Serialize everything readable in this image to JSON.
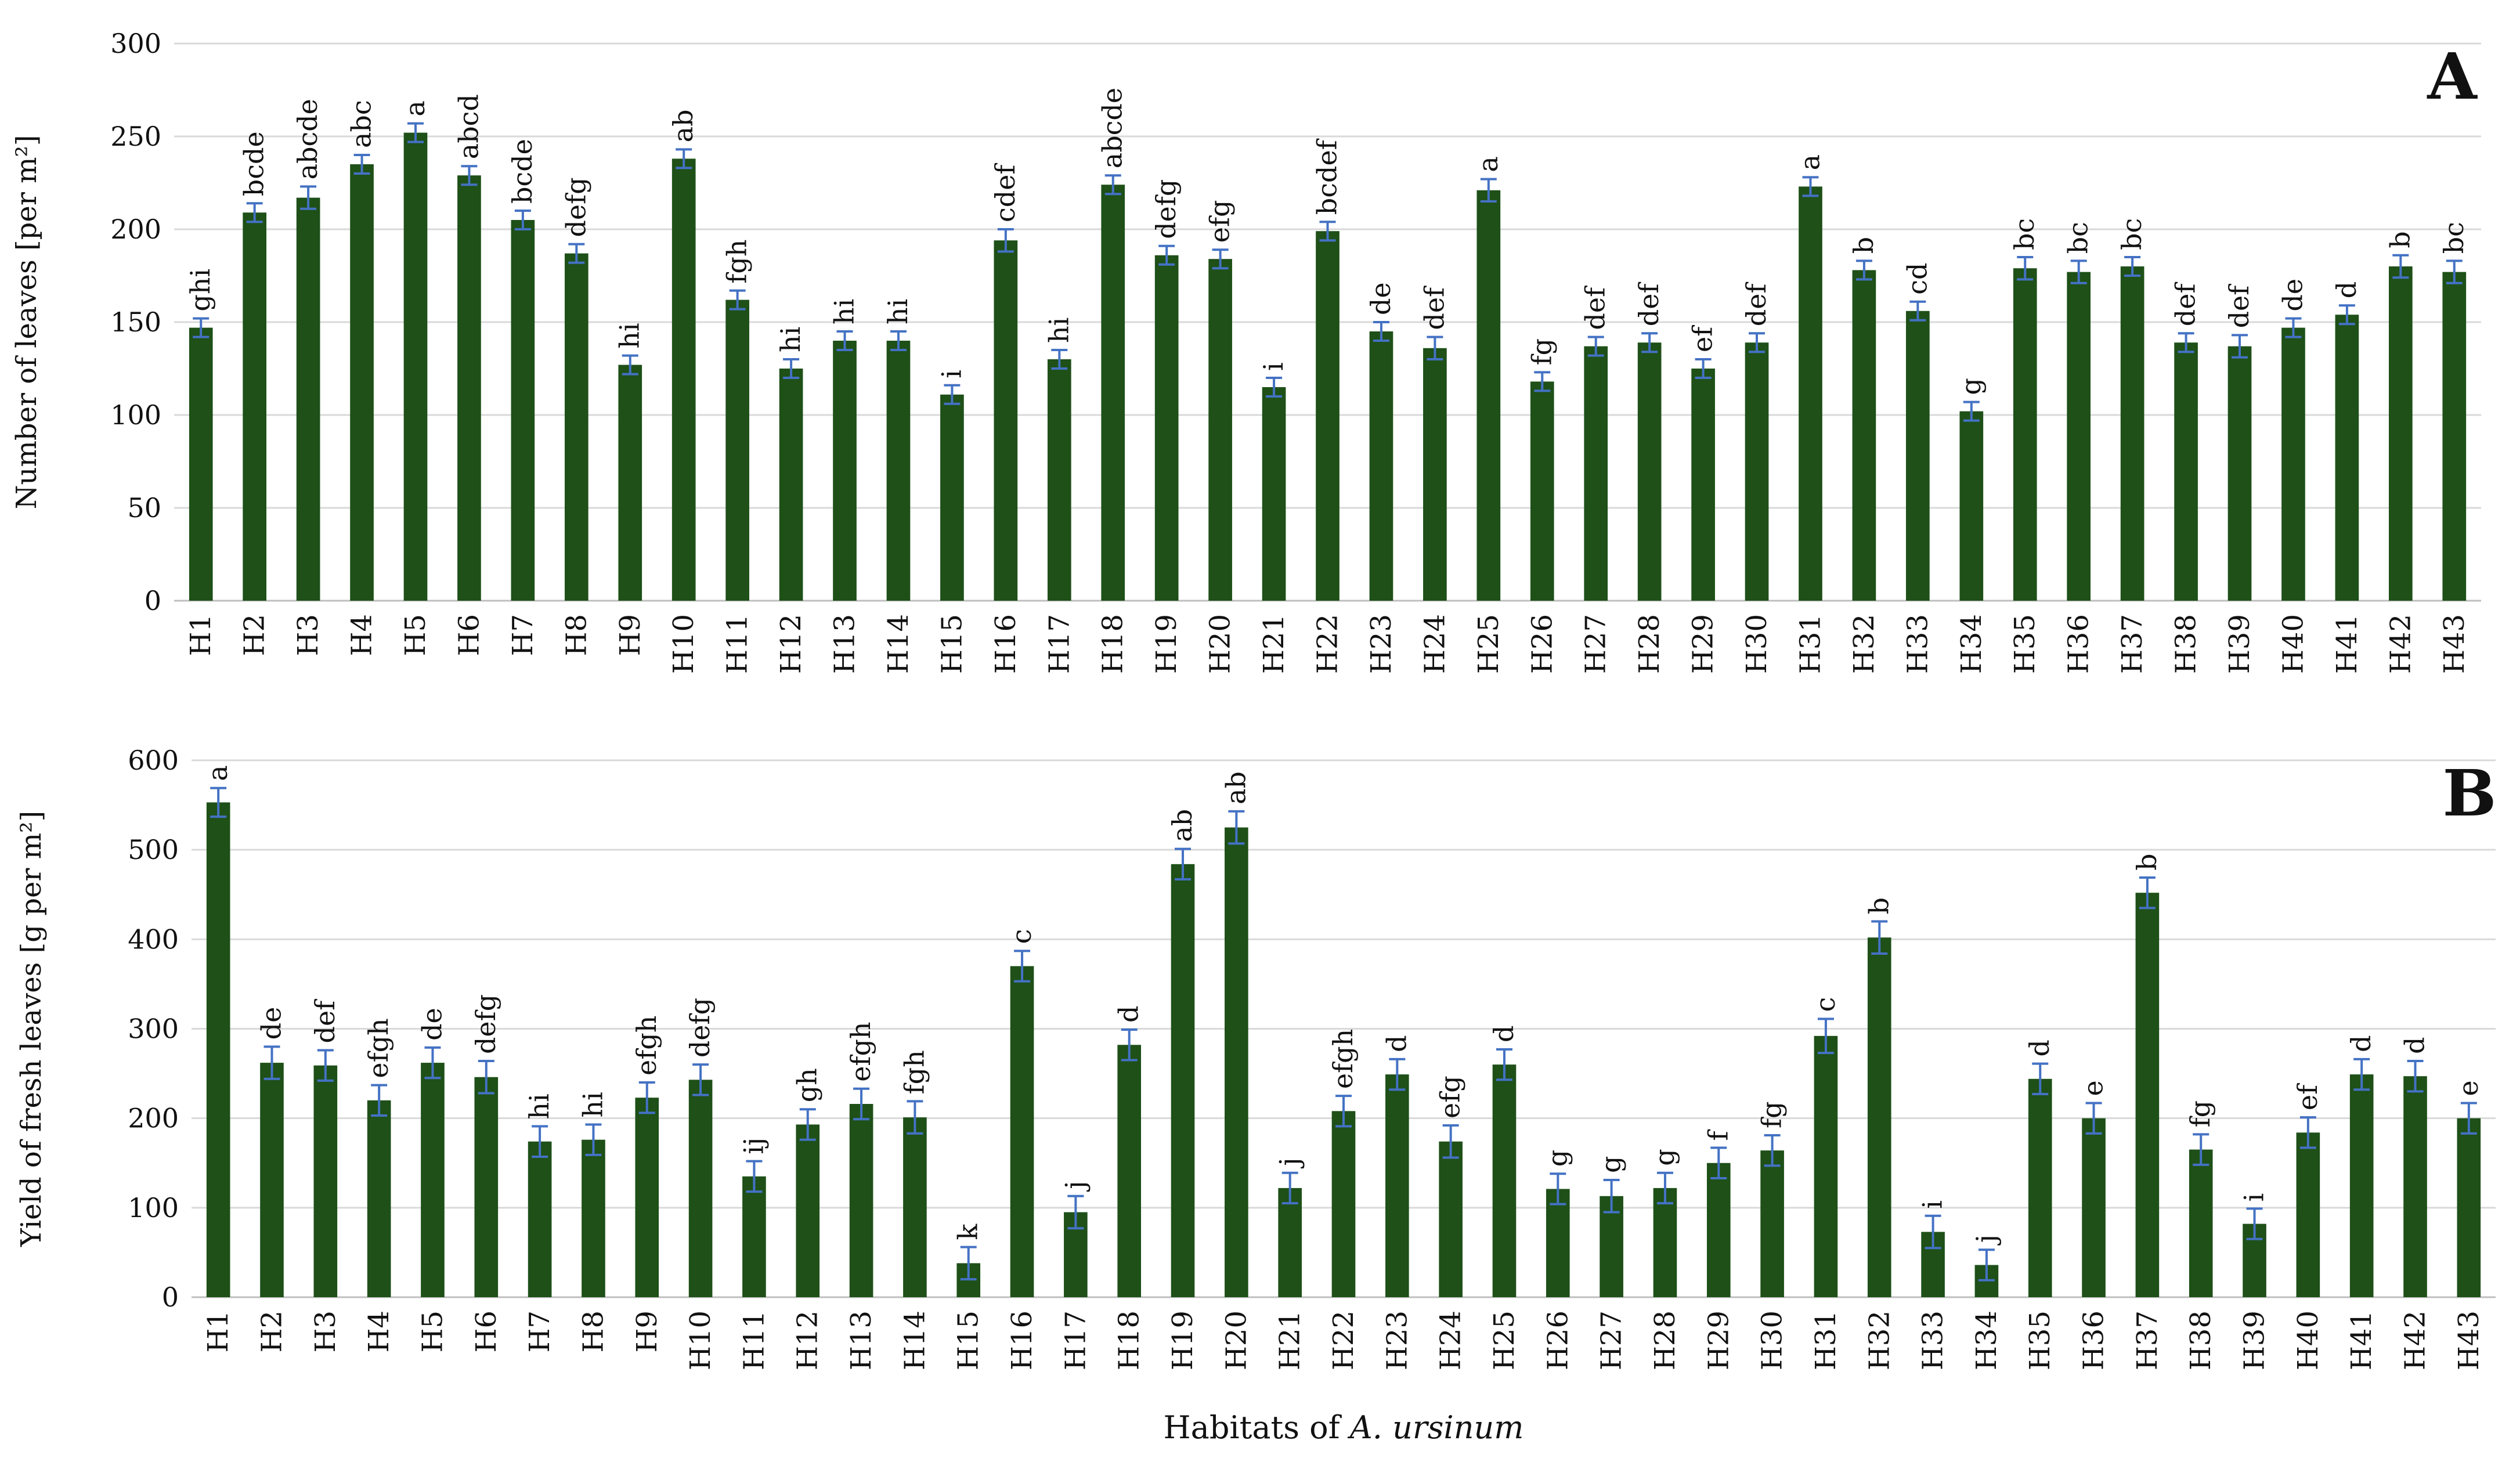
{
  "chart_data": [
    {
      "type": "bar",
      "panel_label": "A",
      "ylabel": "Number of leaves [per m²]",
      "ylim": [
        0,
        300
      ],
      "yticks": [
        0,
        50,
        100,
        150,
        200,
        250,
        300
      ],
      "grid": true,
      "categories": [
        "H1",
        "H2",
        "H3",
        "H4",
        "H5",
        "H6",
        "H7",
        "H8",
        "H9",
        "H10",
        "H11",
        "H12",
        "H13",
        "H14",
        "H15",
        "H16",
        "H17",
        "H18",
        "H19",
        "H20",
        "H21",
        "H22",
        "H23",
        "H24",
        "H25",
        "H26",
        "H27",
        "H28",
        "H29",
        "H30",
        "H31",
        "H32",
        "H33",
        "H34",
        "H35",
        "H36",
        "H37",
        "H38",
        "H39",
        "H40",
        "H41",
        "H42",
        "H43"
      ],
      "values": [
        147,
        209,
        217,
        235,
        252,
        229,
        205,
        187,
        127,
        238,
        162,
        125,
        140,
        140,
        111,
        194,
        130,
        224,
        186,
        184,
        115,
        199,
        145,
        136,
        221,
        118,
        137,
        139,
        125,
        139,
        223,
        178,
        156,
        102,
        179,
        177,
        180,
        139,
        137,
        147,
        154,
        180,
        177
      ],
      "errors": [
        5,
        5,
        6,
        5,
        5,
        5,
        5,
        5,
        5,
        5,
        5,
        5,
        5,
        5,
        5,
        6,
        5,
        5,
        5,
        5,
        5,
        5,
        5,
        6,
        6,
        5,
        5,
        5,
        5,
        5,
        5,
        5,
        5,
        5,
        6,
        6,
        5,
        5,
        6,
        5,
        5,
        6,
        6
      ],
      "letters": [
        "ghi",
        "bcde",
        "abcde",
        "abc",
        "a",
        "abcd",
        "bcde",
        "defg",
        "hi",
        "ab",
        "fgh",
        "hi",
        "hi",
        "hi",
        "i",
        "cdef",
        "hi",
        "abcde",
        "defg",
        "efg",
        "i",
        "bcdef",
        "de",
        "def",
        "a",
        "fg",
        "def",
        "def",
        "ef",
        "def",
        "a",
        "b",
        "cd",
        "g",
        "bc",
        "bc",
        "bc",
        "def",
        "def",
        "de",
        "d",
        "b",
        "bc"
      ]
    },
    {
      "type": "bar",
      "panel_label": "B",
      "ylabel": "Yield of fresh leaves [g per m²]",
      "xlabel_prefix": "Habitats of ",
      "xlabel_species": "A. ursinum",
      "ylim": [
        0,
        600
      ],
      "yticks": [
        0,
        100,
        200,
        300,
        400,
        500,
        600
      ],
      "grid": true,
      "categories": [
        "H1",
        "H2",
        "H3",
        "H4",
        "H5",
        "H6",
        "H7",
        "H8",
        "H9",
        "H10",
        "H11",
        "H12",
        "H13",
        "H14",
        "H15",
        "H16",
        "H17",
        "H18",
        "H19",
        "H20",
        "H21",
        "H22",
        "H23",
        "H24",
        "H25",
        "H26",
        "H27",
        "H28",
        "H29",
        "H30",
        "H31",
        "H32",
        "H33",
        "H34",
        "H35",
        "H36",
        "H37",
        "H38",
        "H39",
        "H40",
        "H41",
        "H42",
        "H43"
      ],
      "values": [
        553,
        262,
        259,
        220,
        262,
        246,
        174,
        176,
        223,
        243,
        135,
        193,
        216,
        201,
        38,
        370,
        95,
        282,
        484,
        525,
        122,
        208,
        249,
        174,
        260,
        121,
        113,
        122,
        150,
        164,
        292,
        402,
        73,
        36,
        244,
        200,
        452,
        165,
        82,
        184,
        249,
        247,
        200
      ],
      "errors": [
        16,
        18,
        17,
        17,
        17,
        18,
        17,
        17,
        17,
        17,
        17,
        17,
        17,
        18,
        18,
        17,
        18,
        17,
        17,
        18,
        17,
        17,
        17,
        18,
        17,
        17,
        18,
        17,
        17,
        17,
        19,
        18,
        18,
        17,
        17,
        17,
        17,
        17,
        17,
        17,
        17,
        17,
        17
      ],
      "letters": [
        "a",
        "de",
        "def",
        "efgh",
        "de",
        "defg",
        "hi",
        "hi",
        "efgh",
        "defg",
        "ij",
        "gh",
        "efgh",
        "fgh",
        "k",
        "c",
        "j",
        "d",
        "ab",
        "ab",
        "j",
        "efgh",
        "d",
        "efg",
        "d",
        "g",
        "g",
        "g",
        "f",
        "fg",
        "c",
        "b",
        "i",
        "j",
        "d",
        "e",
        "b",
        "fg",
        "i",
        "ef",
        "d",
        "d",
        "e"
      ]
    }
  ],
  "colors": {
    "bar": "#1e5018",
    "error": "#4472c4",
    "grid": "#d9d9d9",
    "axis": "#bfbfbf"
  }
}
